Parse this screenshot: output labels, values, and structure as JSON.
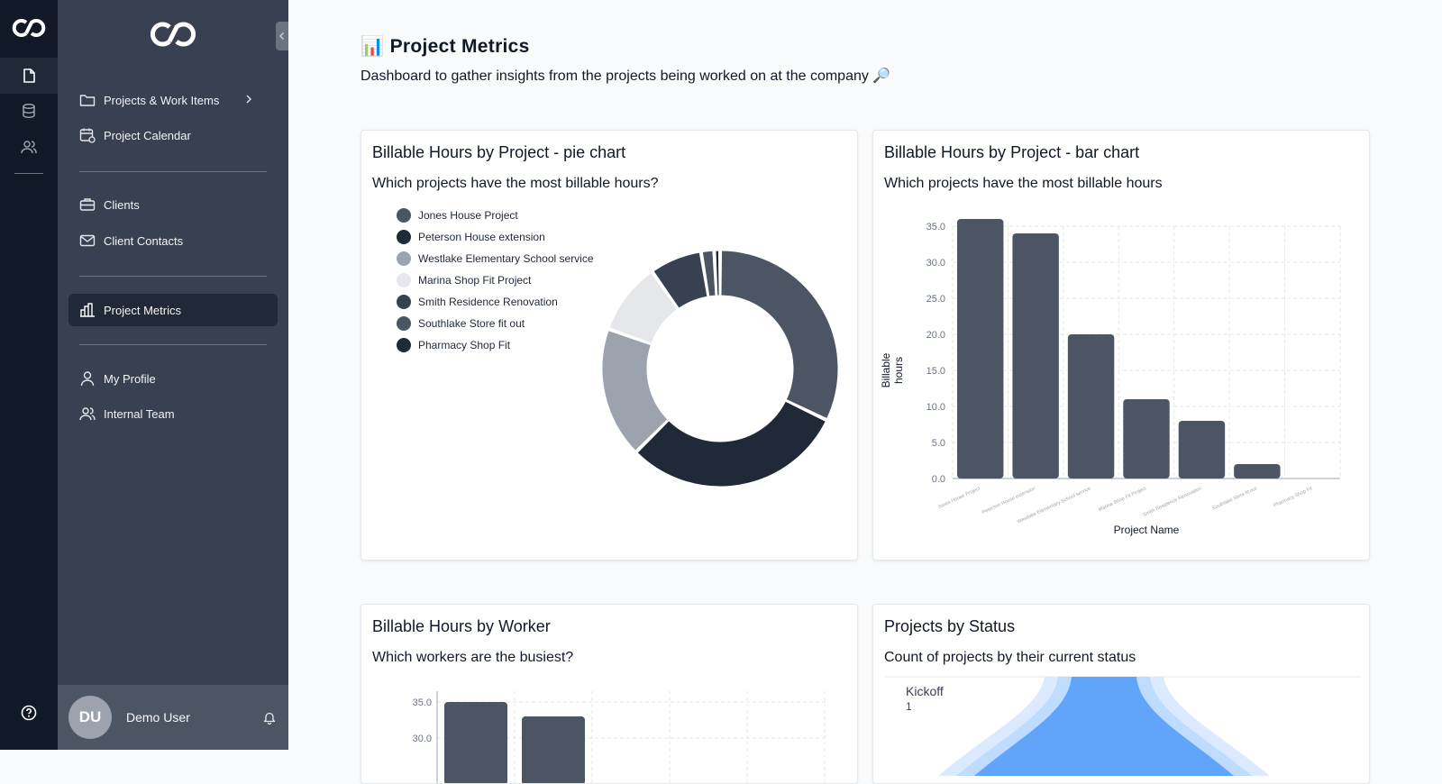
{
  "sidebar": {
    "items": [
      {
        "label": "Projects & Work Items"
      },
      {
        "label": "Project Calendar"
      },
      {
        "label": "Clients"
      },
      {
        "label": "Client Contacts"
      },
      {
        "label": "Project Metrics"
      },
      {
        "label": "My Profile"
      },
      {
        "label": "Internal Team"
      }
    ],
    "user": {
      "initials": "DU",
      "name": "Demo User"
    }
  },
  "page": {
    "title": "📊 Project Metrics",
    "subtitle": "Dashboard to gather insights from the projects being worked on at the company 🔎"
  },
  "cards": [
    {
      "title": "Billable Hours by Project - pie chart",
      "subtitle": "Which projects have the most billable hours?"
    },
    {
      "title": "Billable Hours by Project - bar chart",
      "subtitle": "Which projects have the most billable hours"
    },
    {
      "title": "Billable Hours by Worker",
      "subtitle": "Which workers are the busiest?"
    },
    {
      "title": "Projects by Status",
      "subtitle": "Count of projects by their current status"
    }
  ],
  "colors": {
    "accent": "#1f2937",
    "bar": "#4b5563",
    "funnel": "#60a5fa"
  },
  "chart_data": [
    {
      "type": "pie",
      "categories": [
        "Jones House Project",
        "Peterson House extension",
        "Westlake Elementary School service",
        "Marina Shop Fit Project",
        "Smith Residence Renovation",
        "Southlake Store fit out",
        "Pharmacy Shop Fit"
      ],
      "values": [
        36,
        34,
        20,
        11,
        8,
        2,
        0
      ],
      "colors": [
        "#4b5563",
        "#1f2937",
        "#9ca3af",
        "#e5e7eb",
        "#374151",
        "#4b5563",
        "#1f2937"
      ],
      "legend": "left"
    },
    {
      "type": "bar",
      "categories": [
        "Jones House Project",
        "Peterson House extension",
        "Westlake Elementary School service",
        "Marina Shop Fit Project",
        "Smith Residence Renovation",
        "Southlake Store fit out",
        "Pharmacy Shop Fit"
      ],
      "values": [
        36,
        34,
        20,
        11,
        8,
        2,
        0
      ],
      "xlabel": "Project Name",
      "ylabel": "Billable hours",
      "ylim": [
        0,
        35
      ],
      "yticks": [
        "0.0",
        "5.0",
        "10.0",
        "15.0",
        "20.0",
        "25.0",
        "30.0",
        "35.0"
      ],
      "grid": true
    },
    {
      "type": "bar",
      "categories": [
        "",
        ""
      ],
      "values": [
        35,
        33
      ],
      "yticks": [
        "35.0",
        "30.0"
      ],
      "grid": true
    },
    {
      "type": "funnel",
      "categories": [
        "Kickoff"
      ],
      "values": [
        1
      ]
    }
  ]
}
